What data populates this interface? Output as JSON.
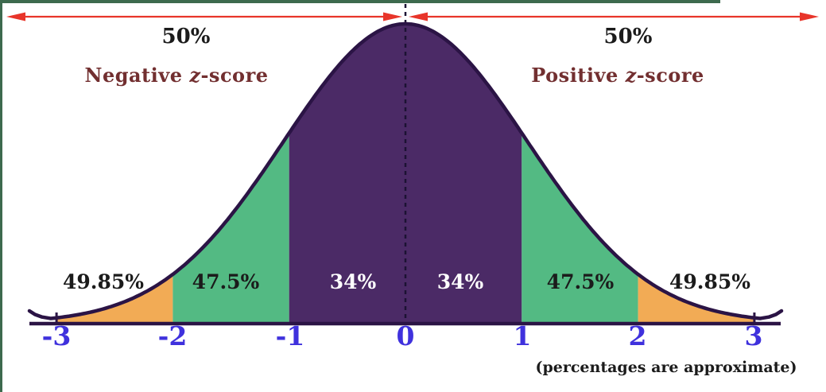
{
  "colors": {
    "purple_fill": "#4b2a66",
    "green_fill": "#53ba83",
    "orange_fill": "#f2ab55",
    "curve_stroke": "#2b1445",
    "axis_line": "#2b1445",
    "dashed_line": "#1c1233",
    "arrow_red": "#e8352a",
    "tick_label_blue": "#3f31dd",
    "zscore_maroon": "#722f30",
    "text_black": "#1b1b1b",
    "frame_green": "#3d6a4e",
    "white_label": "#ffffff"
  },
  "chart_data": {
    "type": "area",
    "title": "Standard normal distribution bell curve with z-scores and approximate areas",
    "curve": "standard normal bell curve, mean 0, symmetric about z = 0, dashed vertical line at the mean",
    "x_ticks": [
      "-3",
      "-2",
      "-1",
      "0",
      "1",
      "2",
      "3"
    ],
    "center_line_z": 0,
    "half_areas": [
      {
        "side": "left",
        "range": "z < 0",
        "label": "50%"
      },
      {
        "side": "right",
        "range": "z > 0",
        "label": "50%"
      }
    ],
    "zscore_labels": {
      "negative": {
        "prefix": "Negative ",
        "z": "z",
        "suffix": "-score"
      },
      "positive": {
        "prefix": "Positive ",
        "z": "z",
        "suffix": "-score"
      }
    },
    "bands": [
      {
        "z_from": -3,
        "z_to": -2,
        "fill": "#f2ab55",
        "label": "49.85%",
        "label_color": "#1b1b1b"
      },
      {
        "z_from": -2,
        "z_to": -1,
        "fill": "#53ba83",
        "label": "47.5%",
        "label_color": "#1b1b1b"
      },
      {
        "z_from": -1,
        "z_to": 0,
        "fill": "#4b2a66",
        "label": "34%",
        "label_color": "#ffffff"
      },
      {
        "z_from": 0,
        "z_to": 1,
        "fill": "#4b2a66",
        "label": "34%",
        "label_color": "#ffffff"
      },
      {
        "z_from": 1,
        "z_to": 2,
        "fill": "#53ba83",
        "label": "47.5%",
        "label_color": "#1b1b1b"
      },
      {
        "z_from": 2,
        "z_to": 3,
        "fill": "#f2ab55",
        "label": "49.85%",
        "label_color": "#1b1b1b"
      }
    ],
    "footnote": "(percentages are approximate)"
  }
}
